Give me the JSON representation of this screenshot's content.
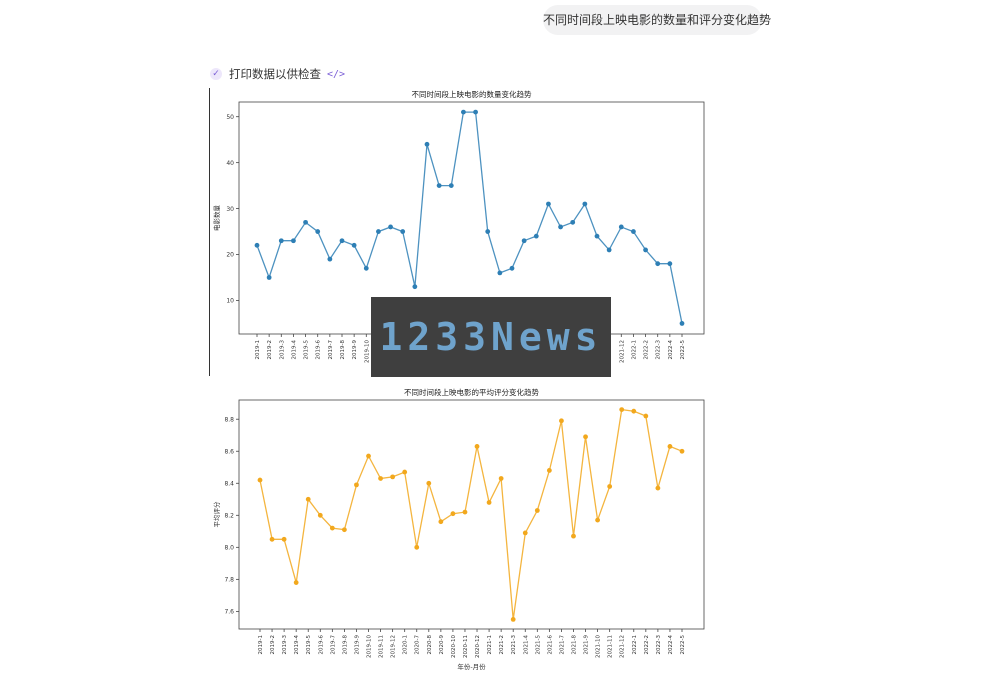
{
  "user_message": "不同时间段上映电影的数量和评分变化趋势",
  "status": {
    "label": "打印数据以供检查",
    "code_icon": "</>"
  },
  "watermark": "1233News",
  "months": [
    "2019-1",
    "2019-2",
    "2019-3",
    "2019-4",
    "2019-5",
    "2019-6",
    "2019-7",
    "2019-8",
    "2019-9",
    "2019-10",
    "2019-11",
    "2019-12",
    "2020-1",
    "2020-7",
    "2020-8",
    "2020-9",
    "2020-10",
    "2020-11",
    "2020-12",
    "2021-1",
    "2021-2",
    "2021-3",
    "2021-4",
    "2021-5",
    "2021-6",
    "2021-7",
    "2021-8",
    "2021-9",
    "2021-10",
    "2021-11",
    "2021-12",
    "2022-1",
    "2022-2",
    "2022-3",
    "2022-4",
    "2022-5"
  ],
  "chart_data": [
    {
      "type": "line",
      "title": "不同时间段上映电影的数量变化趋势",
      "xlabel": "",
      "ylabel": "电影数量",
      "ylim": [
        2.7,
        53.2
      ],
      "yticks": [
        10,
        20,
        30,
        40,
        50
      ],
      "color": "#2e7fb5",
      "values": [
        22,
        15,
        23,
        23,
        27,
        25,
        19,
        23,
        22,
        17,
        25,
        26,
        25,
        13,
        44,
        35,
        35,
        51,
        51,
        25,
        16,
        17,
        23,
        24,
        31,
        26,
        27,
        31,
        24,
        21,
        26,
        25,
        21,
        18,
        18,
        5
      ]
    },
    {
      "type": "line",
      "title": "不同时间段上映电影的平均评分变化趋势",
      "xlabel": "年份-月份",
      "ylabel": "平均评分",
      "ylim": [
        7.49,
        8.92
      ],
      "yticks": [
        7.6,
        7.8,
        8.0,
        8.2,
        8.4,
        8.6,
        8.8
      ],
      "color": "#f2a81d",
      "values": [
        8.42,
        8.05,
        8.05,
        7.78,
        8.3,
        8.2,
        8.12,
        8.11,
        8.39,
        8.57,
        8.43,
        8.44,
        8.47,
        8.0,
        8.4,
        8.16,
        8.21,
        8.22,
        8.63,
        8.28,
        8.43,
        7.55,
        8.09,
        8.23,
        8.48,
        8.79,
        8.07,
        8.69,
        8.17,
        8.38,
        8.86,
        8.85,
        8.82,
        8.37,
        8.63,
        8.6
      ]
    }
  ]
}
